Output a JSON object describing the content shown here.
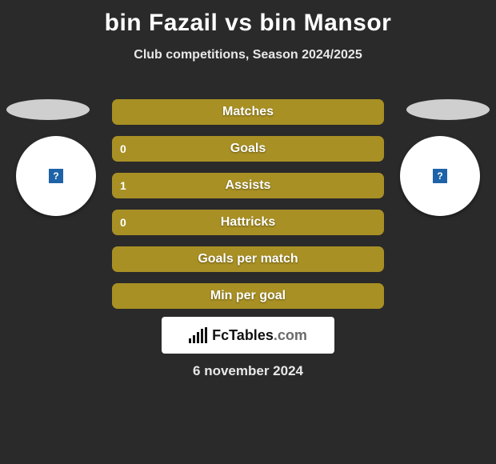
{
  "title": "bin Fazail vs bin Mansor",
  "subtitle": "Club competitions, Season 2024/2025",
  "date": "6 november 2024",
  "logo_text": "FcTables",
  "logo_domain": ".com",
  "bar_color": "#a89024",
  "avatar_badge_left": "?",
  "avatar_badge_right": "?",
  "rows": [
    {
      "label": "Matches",
      "left": "",
      "right": ""
    },
    {
      "label": "Goals",
      "left": "0",
      "right": ""
    },
    {
      "label": "Assists",
      "left": "1",
      "right": ""
    },
    {
      "label": "Hattricks",
      "left": "0",
      "right": ""
    },
    {
      "label": "Goals per match",
      "left": "",
      "right": ""
    },
    {
      "label": "Min per goal",
      "left": "",
      "right": ""
    }
  ]
}
